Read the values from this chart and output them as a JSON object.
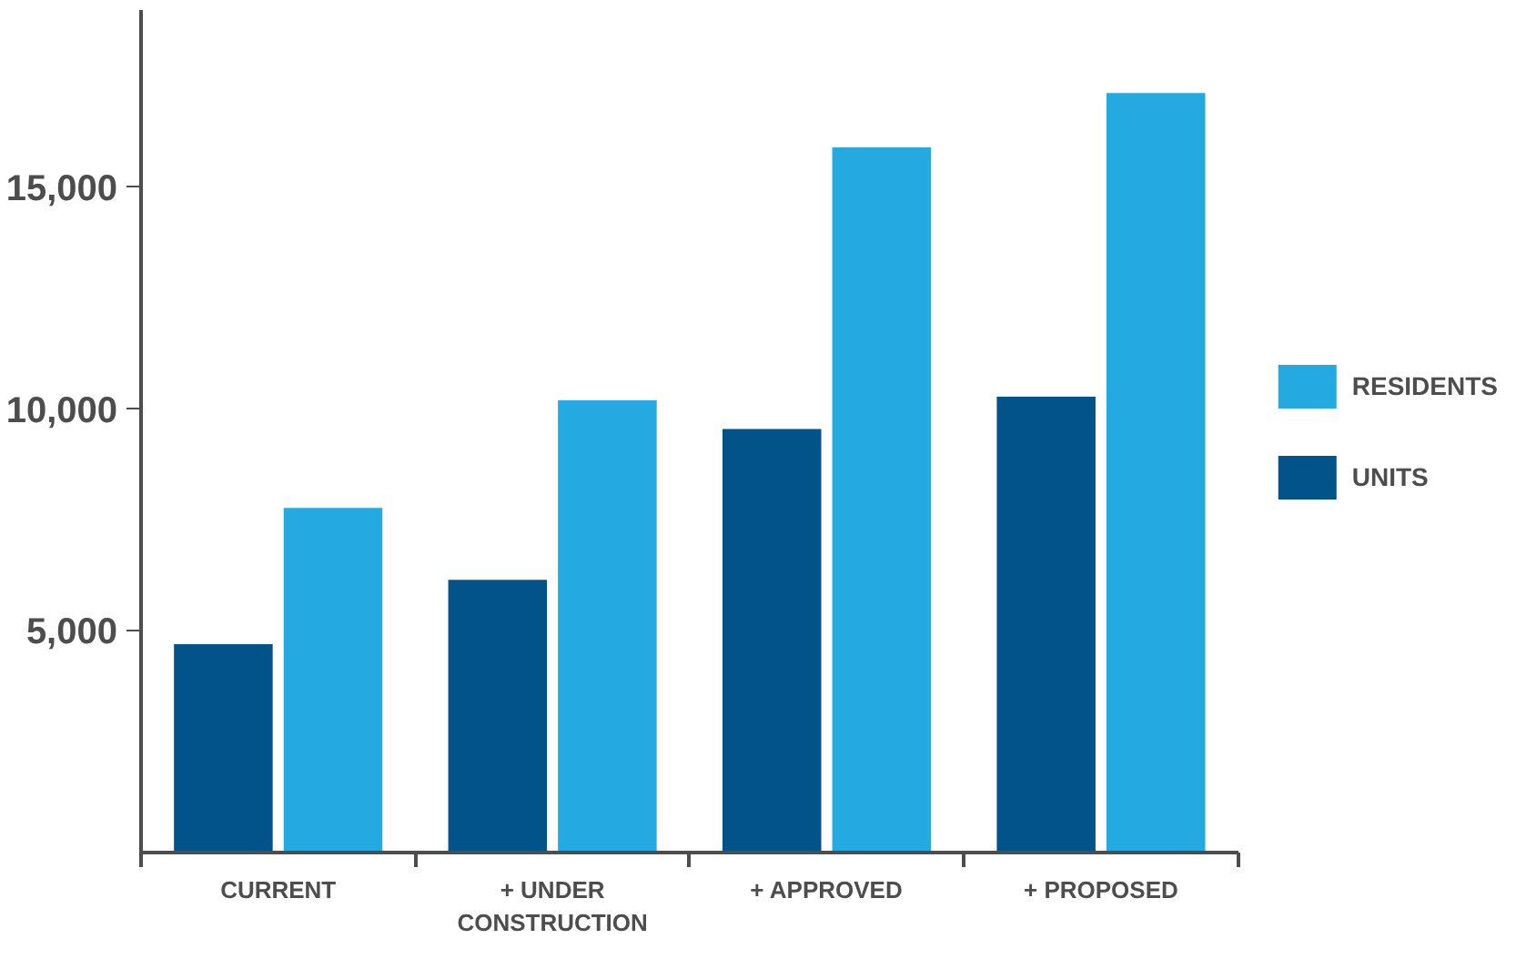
{
  "chart_data": {
    "type": "bar",
    "categories": [
      "CURRENT",
      "+ UNDER CONSTRUCTION",
      "+ APPROVED",
      "+ PROPOSED"
    ],
    "series": [
      {
        "name": "UNITS",
        "color": "#02538a",
        "values": [
          4700,
          6150,
          9550,
          10280
        ]
      },
      {
        "name": "RESIDENTS",
        "color": "#24aae1",
        "values": [
          7770,
          10200,
          15900,
          17130
        ]
      }
    ],
    "ylim": [
      0,
      19000
    ],
    "yticks": [
      {
        "value": 5000,
        "label": "5,000"
      },
      {
        "value": 10000,
        "label": "10,000"
      },
      {
        "value": 15000,
        "label": "15,000"
      }
    ],
    "grid": false,
    "legend": "right"
  }
}
